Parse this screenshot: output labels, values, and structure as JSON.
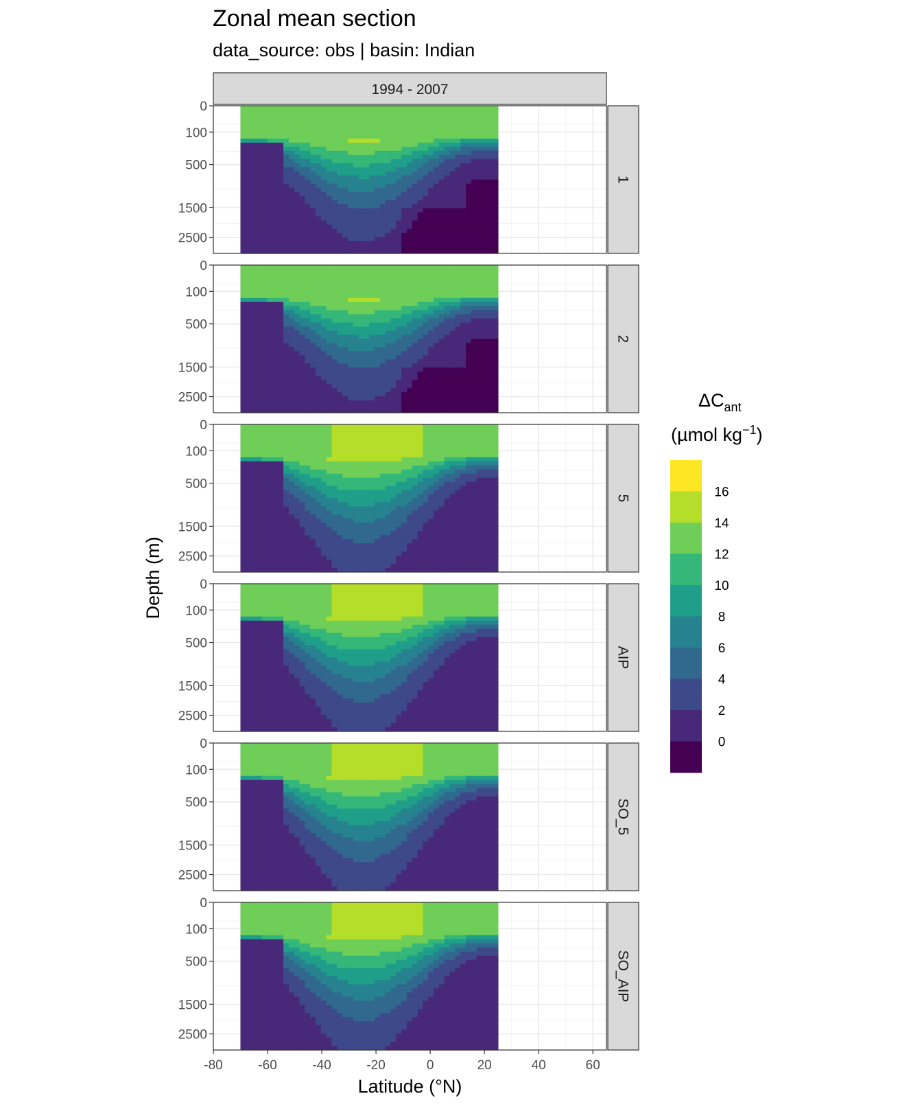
{
  "title": "Zonal mean section",
  "subtitle": "data_source:  obs | basin: Indian",
  "chart_data": {
    "type": "heatmap",
    "column_strip": "1994 - 2007",
    "panels": [
      "1",
      "2",
      "5",
      "AIP",
      "SO_5",
      "SO_AIP"
    ],
    "xlabel": "Latitude (°N)",
    "ylabel": "Depth (m)",
    "xlim": [
      -80,
      65
    ],
    "x_ticks": [
      -80,
      -60,
      -40,
      -20,
      0,
      20,
      40,
      60
    ],
    "x_tick_labels": [
      "-80",
      "-60",
      "-40",
      "-20",
      "0",
      "20",
      "40",
      "60"
    ],
    "y_ticks": [
      0,
      100,
      500,
      1500,
      2500
    ],
    "y_tick_labels": [
      "0",
      "100",
      "500",
      "1500",
      "2500"
    ],
    "y_scale": "reversed square-root",
    "data_extent_lat": [
      -70,
      25
    ],
    "legend": {
      "title": "ΔC",
      "title_sub": "ant",
      "unit_main": "(µmol kg",
      "unit_sup": "−1",
      "unit_close": ")",
      "labels": [
        "16",
        "14",
        "12",
        "10",
        "8",
        "6",
        "4",
        "2",
        "0"
      ],
      "position": "right",
      "colors": [
        "#fde725",
        "#b5de2b",
        "#6ece58",
        "#35b779",
        "#1f9e89",
        "#26828e",
        "#31688e",
        "#3e4989",
        "#482878",
        "#440154"
      ]
    },
    "level_breaks": [
      0,
      2,
      4,
      6,
      8,
      10,
      12,
      14,
      16
    ]
  }
}
